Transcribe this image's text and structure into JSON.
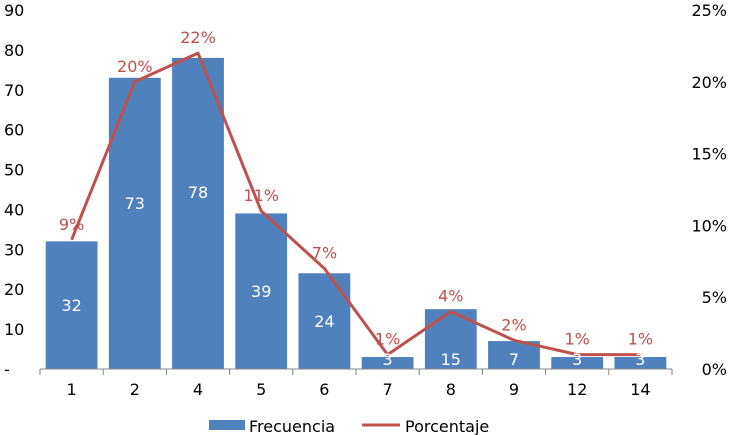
{
  "chart_data": {
    "type": "bar",
    "categories": [
      "1",
      "2",
      "4",
      "5",
      "6",
      "7",
      "8",
      "9",
      "12",
      "14"
    ],
    "series": [
      {
        "name": "Frecuencia",
        "kind": "bar",
        "axis": "left",
        "values": [
          32,
          73,
          78,
          39,
          24,
          3,
          15,
          7,
          3,
          3
        ],
        "labels": [
          "32",
          "73",
          "78",
          "39",
          "24",
          "3",
          "15",
          "7",
          "3",
          "3"
        ]
      },
      {
        "name": "Porcentaje",
        "kind": "line",
        "axis": "right",
        "values": [
          0.09,
          0.2,
          0.22,
          0.11,
          0.07,
          0.01,
          0.04,
          0.02,
          0.01,
          0.01
        ],
        "labels": [
          "9%",
          "20%",
          "22%",
          "11%",
          "7%",
          "1%",
          "4%",
          "2%",
          "1%",
          "1%"
        ]
      }
    ],
    "y_left": {
      "range": [
        0,
        90
      ],
      "ticks": [
        0,
        10,
        20,
        30,
        40,
        50,
        60,
        70,
        80,
        90
      ],
      "tick_labels": [
        "-",
        "10",
        "20",
        "30",
        "40",
        "50",
        "60",
        "70",
        "80",
        "90"
      ]
    },
    "y_right": {
      "range": [
        0,
        0.25
      ],
      "ticks": [
        0,
        0.05,
        0.1,
        0.15,
        0.2,
        0.25
      ],
      "tick_labels": [
        "0%",
        "5%",
        "10%",
        "15%",
        "20%",
        "25%"
      ]
    },
    "grid": false,
    "legend_position": "bottom",
    "colors": {
      "bar": "#4f81bd",
      "line": "#c0504d",
      "line_label": "#c0504d",
      "bar_label": "#ffffff",
      "axis": "#868686"
    }
  }
}
